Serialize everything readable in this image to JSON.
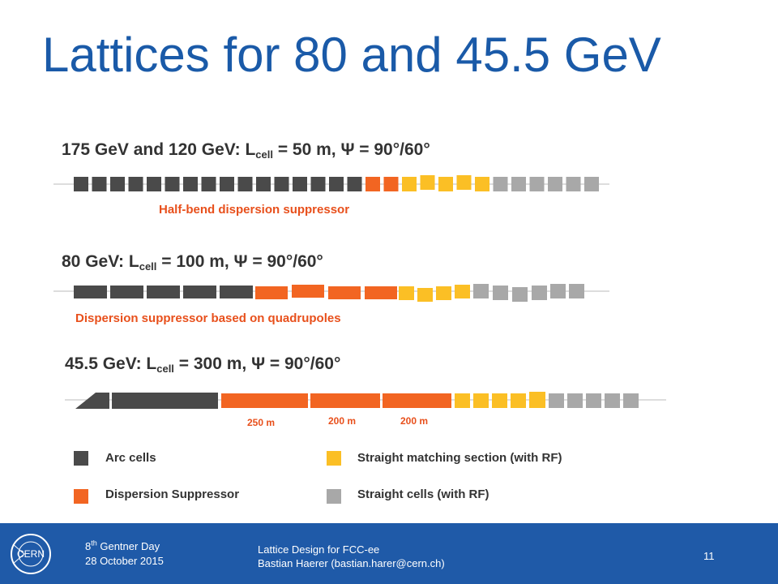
{
  "slide": {
    "title": "Lattices for 80 and 45.5 GeV",
    "page_number": "11"
  },
  "lattice_1": {
    "heading_prefix": "175 GeV and 120 GeV: L",
    "heading_sub": "cell",
    "heading_suffix": " = 50 m, Ψ = 90°/60°",
    "note": "Half-bend dispersion suppressor"
  },
  "lattice_2": {
    "heading_prefix": "80 GeV: L",
    "heading_sub": "cell",
    "heading_suffix": " = 100 m, Ψ = 90°/60°",
    "note": "Dispersion suppressor based on quadrupoles"
  },
  "lattice_3": {
    "heading_prefix": "45.5 GeV: L",
    "heading_sub": "cell",
    "heading_suffix": " = 300 m, Ψ = 90°/60°",
    "lengths": [
      "250 m",
      "200 m",
      "200 m"
    ]
  },
  "legend": {
    "arc": "Arc cells",
    "ds": "Dispersion Suppressor",
    "matching": "Straight matching section (with RF)",
    "straight": "Straight cells (with RF)"
  },
  "colors": {
    "arc": "#4a4a4a",
    "dispersion_suppressor": "#f26522",
    "matching": "#fbbf25",
    "straight": "#a8a8a8",
    "title": "#1a5aa8",
    "footer": "#1f5aa8"
  },
  "footer": {
    "event_prefix": "8",
    "event_sup": "th",
    "event_suffix": " Gentner Day",
    "date": "28 October 2015",
    "talk_title": "Lattice Design for FCC-ee",
    "author": "Bastian Haerer (bastian.harer@cern.ch)",
    "logo_text": "CERN"
  }
}
